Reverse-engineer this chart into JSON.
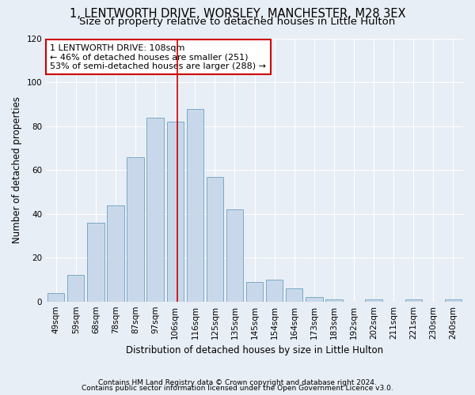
{
  "title": "1, LENTWORTH DRIVE, WORSLEY, MANCHESTER, M28 3EX",
  "subtitle": "Size of property relative to detached houses in Little Hulton",
  "xlabel": "Distribution of detached houses by size in Little Hulton",
  "ylabel": "Number of detached properties",
  "categories": [
    "49sqm",
    "59sqm",
    "68sqm",
    "78sqm",
    "87sqm",
    "97sqm",
    "106sqm",
    "116sqm",
    "125sqm",
    "135sqm",
    "145sqm",
    "154sqm",
    "164sqm",
    "173sqm",
    "183sqm",
    "192sqm",
    "202sqm",
    "211sqm",
    "221sqm",
    "230sqm",
    "240sqm"
  ],
  "bar_values": [
    4,
    12,
    36,
    44,
    66,
    84,
    82,
    88,
    57,
    42,
    9,
    10,
    6,
    2,
    1,
    0,
    1,
    0,
    1,
    0,
    1
  ],
  "bar_color": "#c8d8ea",
  "bar_edge_color": "#7aaac8",
  "vline_color": "#cc0000",
  "vline_position": 6,
  "annotation_text": "1 LENTWORTH DRIVE: 108sqm\n← 46% of detached houses are smaller (251)\n53% of semi-detached houses are larger (288) →",
  "annotation_box_color": "#ffffff",
  "annotation_box_edge": "#cc0000",
  "ylim": [
    0,
    120
  ],
  "yticks": [
    0,
    20,
    40,
    60,
    80,
    100,
    120
  ],
  "fig_background": "#e8eef5",
  "plot_background": "#e8eef5",
  "footer_line1": "Contains HM Land Registry data © Crown copyright and database right 2024.",
  "footer_line2": "Contains public sector information licensed under the Open Government Licence v3.0.",
  "title_fontsize": 10.5,
  "subtitle_fontsize": 9.5,
  "axis_label_fontsize": 8.5,
  "tick_fontsize": 7.5,
  "footer_fontsize": 6.5,
  "annotation_fontsize": 8
}
